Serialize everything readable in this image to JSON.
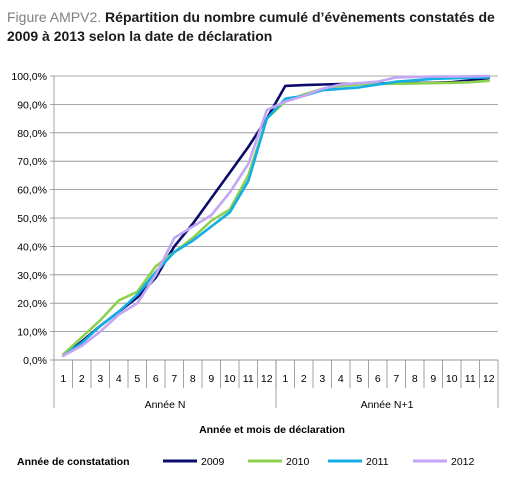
{
  "figure": {
    "label": "Figure AMPV2.",
    "title": "Répartition du nombre cumulé d’évènements constatés de 2009 à 2013 selon la date de déclaration"
  },
  "chart_data": {
    "type": "line",
    "title": "Répartition du nombre cumulé d’évènements constatés de 2009 à 2013 selon la date de déclaration",
    "xlabel": "Année et mois de déclaration",
    "ylabel": "",
    "ylim": [
      0,
      100
    ],
    "y_ticks": [
      "0,0%",
      "10,0%",
      "20,0%",
      "30,0%",
      "40,0%",
      "50,0%",
      "60,0%",
      "70,0%",
      "80,0%",
      "90,0%",
      "100,0%"
    ],
    "x": [
      "1",
      "2",
      "3",
      "4",
      "5",
      "6",
      "7",
      "8",
      "9",
      "10",
      "11",
      "12",
      "1",
      "2",
      "3",
      "4",
      "5",
      "6",
      "7",
      "8",
      "9",
      "10",
      "11",
      "12"
    ],
    "x_groups": [
      {
        "label": "Année N",
        "count": 12
      },
      {
        "label": "Année N+1",
        "count": 12
      }
    ],
    "grid": true,
    "legend_position": "bottom",
    "legend_title": "Année de constatation",
    "series": [
      {
        "name": "2009",
        "color": "#0b0b6b",
        "values": [
          1.5,
          6.5,
          12,
          17,
          22,
          29,
          40,
          48,
          57,
          66,
          75,
          85,
          96.5,
          96.8,
          97,
          97.2,
          97.3,
          97.4,
          97.4,
          97.5,
          97.6,
          97.8,
          98.5,
          99.3
        ]
      },
      {
        "name": "2010",
        "color": "#8dd14e",
        "values": [
          2,
          8,
          14,
          21,
          24,
          33,
          38,
          43,
          49,
          53,
          65,
          85,
          91,
          93.5,
          95.5,
          96.5,
          97,
          97.2,
          97.3,
          97.4,
          97.5,
          97.6,
          97.8,
          98.3
        ]
      },
      {
        "name": "2011",
        "color": "#13aee6",
        "values": [
          1.5,
          6,
          12,
          17,
          23,
          31,
          38,
          42,
          47,
          52,
          63,
          85,
          92,
          93,
          95,
          95.5,
          96,
          97,
          98,
          98.5,
          99,
          99.2,
          99.4,
          99.5
        ]
      },
      {
        "name": "2012",
        "color": "#c3a6f5",
        "values": [
          1.5,
          5,
          10,
          16,
          20,
          30,
          43,
          47,
          51,
          59,
          69,
          88,
          91,
          93,
          95.5,
          97,
          97.5,
          98,
          99.5,
          99.7,
          99.8,
          99.8,
          99.9,
          100
        ]
      }
    ]
  }
}
